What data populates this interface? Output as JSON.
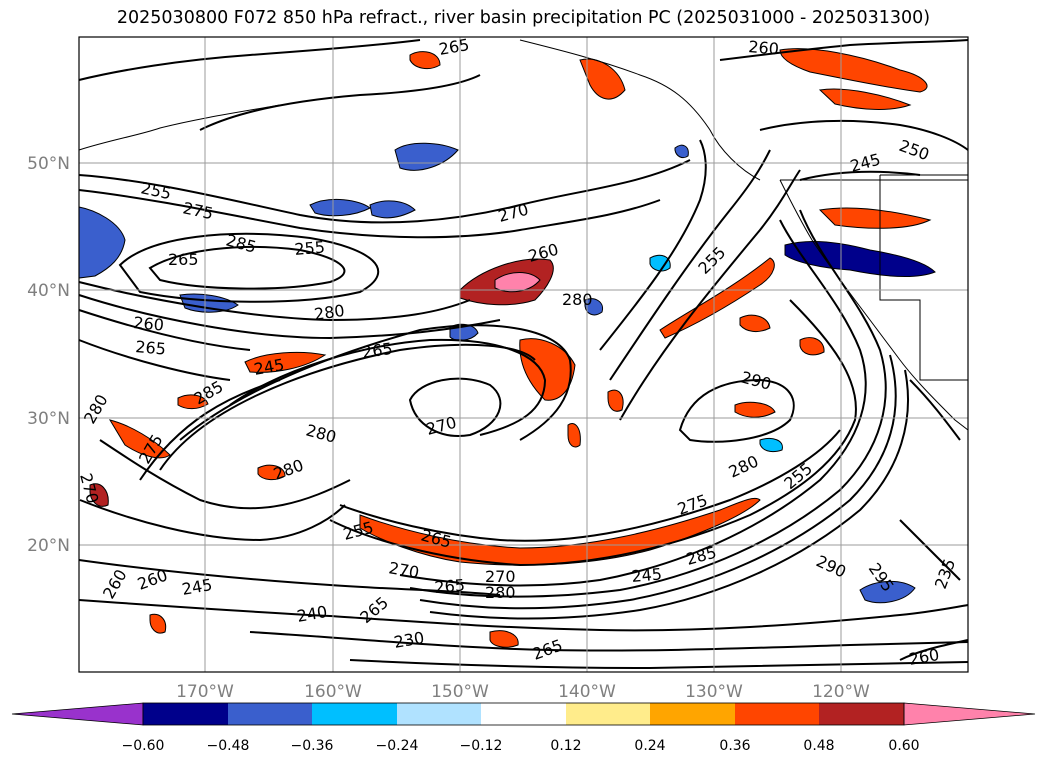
{
  "title": "2025030800 F072 850 hPa refract., river basin precipitation PC (2025031000 - 2025031300)",
  "map": {
    "lat_labels": [
      "50°N",
      "40°N",
      "30°N",
      "20°N"
    ],
    "lon_labels": [
      "170°W",
      "160°W",
      "150°W",
      "140°W",
      "130°W",
      "120°W"
    ],
    "grid": true
  },
  "colorbar": {
    "tick_labels": [
      "−0.60",
      "−0.48",
      "−0.36",
      "−0.24",
      "−0.12",
      "0.12",
      "0.24",
      "0.36",
      "0.48",
      "0.60"
    ],
    "colors": [
      "#9932cc",
      "#00008b",
      "#3a5fcd",
      "#00bfff",
      "#b0e2ff",
      "#ffffff",
      "#ffec8b",
      "#ffa500",
      "#ff4500",
      "#b22222",
      "#ff82ab"
    ],
    "extend": "both"
  },
  "contour_labels": [
    "265",
    "260",
    "250",
    "245",
    "255",
    "275",
    "285",
    "265",
    "255",
    "270",
    "260",
    "280",
    "255",
    "260",
    "265",
    "280",
    "265",
    "245",
    "285",
    "270",
    "280",
    "290",
    "280",
    "275",
    "270",
    "280",
    "280",
    "255",
    "275",
    "265",
    "255",
    "270",
    "265",
    "270",
    "280",
    "245",
    "285",
    "290",
    "295",
    "235",
    "260",
    "260",
    "245",
    "240",
    "265",
    "230",
    "265",
    "260"
  ]
}
